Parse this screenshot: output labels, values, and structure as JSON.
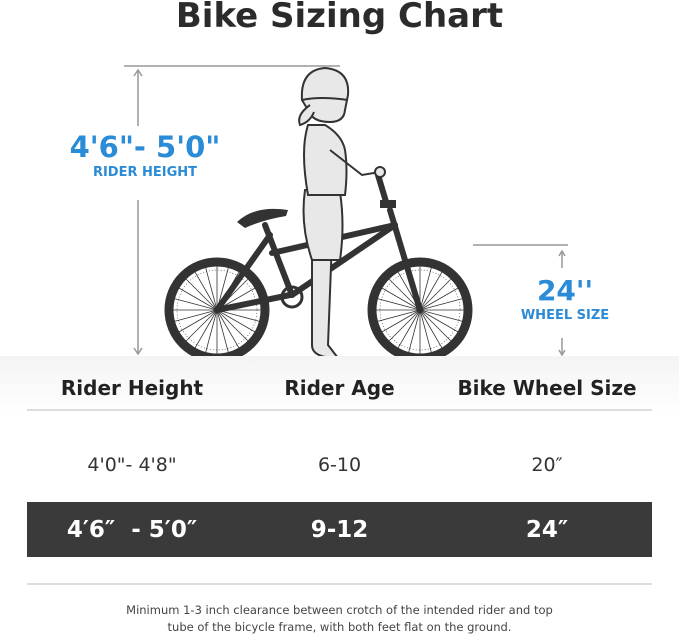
{
  "title": "Bike Sizing Chart",
  "illustration": {
    "rider_height_value": "4'6\"- 5'0\"",
    "rider_height_label": "RIDER HEIGHT",
    "wheel_size_value": "24''",
    "wheel_size_label": "WHEEL SIZE",
    "accent_color": "#2a8bd6"
  },
  "table": {
    "headers": [
      "Rider Height",
      "Rider Age",
      "Bike Wheel Size"
    ],
    "rows": [
      {
        "height": "4'0\"- 4'8\"",
        "age": "6-10",
        "wheel": "20″",
        "highlighted": false
      },
      {
        "height": "4′6″  - 5′0″",
        "age": "9-12",
        "wheel": "24″",
        "highlighted": true
      }
    ]
  },
  "note": {
    "line1": "Minimum 1-3 inch clearance between crotch of the intended rider and top",
    "line2": "tube of the bicycle frame, with both feet flat on the ground."
  }
}
